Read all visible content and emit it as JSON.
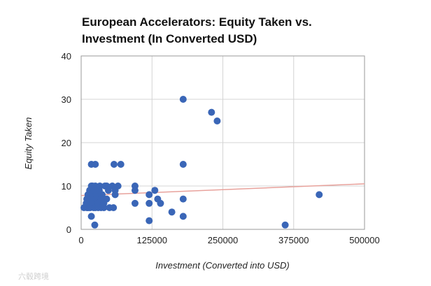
{
  "chart_data": {
    "type": "scatter",
    "title": "European Accelerators: Equity Taken vs. Investment (In Converted USD)",
    "xlabel": "Investment (Converted into USD)",
    "ylabel": "Equity Taken",
    "xlim": [
      0,
      500000
    ],
    "ylim": [
      0,
      40
    ],
    "x_ticks": [
      0,
      125000,
      250000,
      375000,
      500000
    ],
    "x_tick_labels": [
      "0",
      "125000",
      "250000",
      "375000",
      "500000"
    ],
    "y_ticks": [
      0,
      10,
      20,
      30,
      40
    ],
    "y_tick_labels": [
      "0",
      "10",
      "20",
      "30",
      "40"
    ],
    "grid": true,
    "legend": "none",
    "point_color": "#3a66b7",
    "trendline_color": "#e8a29c",
    "trendline": {
      "x": [
        0,
        500000
      ],
      "y": [
        7.8,
        10.5
      ]
    },
    "points": [
      [
        5000,
        5
      ],
      [
        9000,
        6
      ],
      [
        10000,
        5
      ],
      [
        10000,
        7
      ],
      [
        12000,
        8
      ],
      [
        12000,
        5
      ],
      [
        14000,
        6
      ],
      [
        15000,
        9
      ],
      [
        15000,
        7
      ],
      [
        16000,
        5
      ],
      [
        18000,
        10
      ],
      [
        18000,
        3
      ],
      [
        18000,
        15
      ],
      [
        20000,
        8
      ],
      [
        20000,
        6
      ],
      [
        20000,
        10
      ],
      [
        22000,
        7
      ],
      [
        22000,
        5
      ],
      [
        23000,
        9
      ],
      [
        24000,
        1
      ],
      [
        25000,
        15
      ],
      [
        25000,
        10
      ],
      [
        25000,
        6
      ],
      [
        25000,
        5
      ],
      [
        27000,
        8
      ],
      [
        28000,
        7
      ],
      [
        30000,
        6
      ],
      [
        30000,
        5
      ],
      [
        32000,
        9
      ],
      [
        33000,
        10
      ],
      [
        35000,
        5
      ],
      [
        35000,
        7
      ],
      [
        37000,
        8
      ],
      [
        40000,
        6
      ],
      [
        40000,
        5
      ],
      [
        42000,
        10
      ],
      [
        45000,
        7
      ],
      [
        45000,
        10
      ],
      [
        48000,
        9
      ],
      [
        50000,
        5
      ],
      [
        55000,
        10
      ],
      [
        57000,
        5
      ],
      [
        58000,
        15
      ],
      [
        60000,
        9
      ],
      [
        60000,
        8
      ],
      [
        65000,
        10
      ],
      [
        70000,
        15
      ],
      [
        95000,
        10
      ],
      [
        95000,
        9
      ],
      [
        95000,
        6
      ],
      [
        120000,
        8
      ],
      [
        120000,
        6
      ],
      [
        120000,
        2
      ],
      [
        130000,
        9
      ],
      [
        135000,
        7
      ],
      [
        140000,
        6
      ],
      [
        160000,
        4
      ],
      [
        180000,
        30
      ],
      [
        180000,
        15
      ],
      [
        180000,
        7
      ],
      [
        180000,
        3
      ],
      [
        230000,
        27
      ],
      [
        240000,
        25
      ],
      [
        360000,
        1
      ],
      [
        420000,
        8
      ]
    ]
  },
  "watermark": {
    "text": "六毂跨境"
  }
}
